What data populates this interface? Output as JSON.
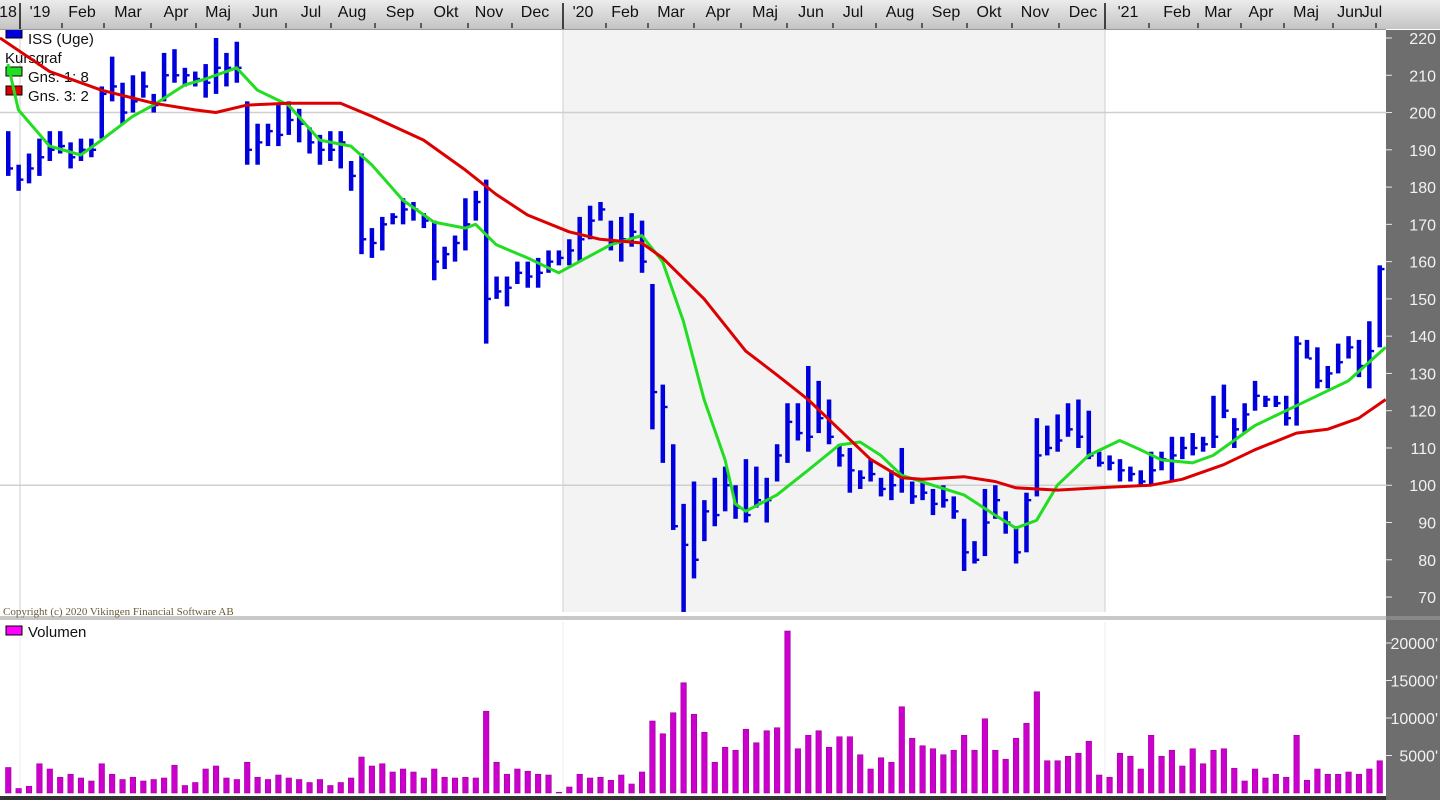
{
  "chart_data": [
    {
      "type": "ohlc",
      "title": "",
      "legend": [
        {
          "label": "ISS (Uge)",
          "color": "#0000dd"
        },
        {
          "label": "Kursgraf",
          "color": ""
        },
        {
          "label": "Gns. 1: 8",
          "color": "#22dd22"
        },
        {
          "label": "Gns. 3: 2",
          "color": "#dd0000"
        }
      ],
      "legend_placement": "top-left",
      "x_tick_labels": [
        "18",
        "'19",
        "Feb",
        "Mar",
        "Apr",
        "Maj",
        "Jun",
        "Jul",
        "Aug",
        "Sep",
        "Okt",
        "Nov",
        "Dec",
        "'20",
        "Feb",
        "Mar",
        "Apr",
        "Maj",
        "Jun",
        "Jul",
        "Aug",
        "Sep",
        "Okt",
        "Nov",
        "Dec",
        "'21",
        "Feb",
        "Mar",
        "Apr",
        "Maj",
        "Jun",
        "Jul"
      ],
      "y_ticks": [
        220,
        210,
        200,
        190,
        180,
        170,
        160,
        150,
        140,
        130,
        120,
        110,
        100,
        90,
        80,
        70
      ],
      "ylim": [
        66,
        221
      ],
      "grid_y": [
        200,
        100
      ],
      "shaded_period": "'20",
      "colors": {
        "bars": "#0000dd",
        "ma_short": "#22dd22",
        "ma_long": "#dd0000",
        "shade": "#f3f3f3",
        "axis_bg": "#6e6e6e"
      },
      "series": {
        "high": [
          195,
          186,
          189,
          193,
          195,
          195,
          192,
          193,
          193,
          207,
          215,
          208,
          210,
          211,
          205,
          216,
          217,
          212,
          211,
          213,
          220,
          216,
          219,
          203,
          197,
          197,
          202,
          203,
          201,
          196,
          194,
          195,
          195,
          187,
          189,
          169,
          172,
          173,
          177,
          176,
          173,
          171,
          164,
          167,
          177,
          179,
          182,
          156,
          156,
          160,
          160,
          161,
          163,
          163,
          166,
          172,
          175,
          176,
          171,
          172,
          173,
          171,
          154,
          127,
          111,
          95,
          101,
          96,
          102,
          105,
          100,
          107,
          105,
          102,
          111,
          122,
          122,
          132,
          128,
          123,
          111,
          110,
          104,
          107,
          102,
          104,
          110,
          101,
          101,
          99,
          100,
          97,
          91,
          85,
          99,
          100,
          93,
          89,
          98,
          118,
          116,
          119,
          122,
          123,
          120,
          109,
          108,
          107,
          105,
          104,
          109,
          109,
          113,
          113,
          114,
          113,
          124,
          127,
          118,
          122,
          128,
          124,
          124,
          124,
          140,
          139,
          137,
          132,
          138,
          140,
          139,
          144,
          159
        ],
        "low": [
          183,
          179,
          181,
          183,
          187,
          189,
          185,
          187,
          188,
          193,
          203,
          197,
          200,
          204,
          200,
          203,
          208,
          207,
          207,
          204,
          205,
          207,
          208,
          186,
          186,
          191,
          191,
          194,
          192,
          189,
          186,
          187,
          185,
          179,
          162,
          161,
          163,
          170,
          170,
          171,
          169,
          155,
          158,
          160,
          163,
          171,
          138,
          150,
          148,
          154,
          153,
          153,
          157,
          159,
          159,
          160,
          166,
          171,
          163,
          160,
          164,
          157,
          115,
          106,
          88,
          66,
          75,
          85,
          89,
          93,
          91,
          90,
          94,
          90,
          101,
          106,
          112,
          109,
          114,
          111,
          105,
          98,
          99,
          101,
          97,
          96,
          98,
          95,
          96,
          92,
          94,
          91,
          77,
          79,
          81,
          91,
          87,
          79,
          82,
          97,
          108,
          109,
          113,
          110,
          107,
          105,
          104,
          101,
          101,
          100,
          100,
          104,
          101,
          107,
          108,
          109,
          110,
          118,
          110,
          114,
          120,
          121,
          121,
          116,
          116,
          134,
          126,
          126,
          130,
          134,
          129,
          126,
          137
        ],
        "close": [
          185,
          182,
          185,
          188,
          190,
          191,
          188,
          190,
          190,
          205,
          207,
          200,
          203,
          207,
          202,
          210,
          210,
          210,
          209,
          208,
          212,
          212,
          212,
          190,
          192,
          195,
          194,
          198,
          197,
          192,
          190,
          190,
          192,
          183,
          166,
          165,
          170,
          172,
          174,
          174,
          171,
          160,
          162,
          165,
          170,
          176,
          150,
          152,
          153,
          157,
          156,
          157,
          160,
          161,
          163,
          166,
          171,
          174,
          165,
          166,
          168,
          160,
          125,
          121,
          89,
          84,
          80,
          93,
          92,
          100,
          94,
          92,
          96,
          96,
          108,
          117,
          114,
          113,
          118,
          113,
          108,
          104,
          102,
          103,
          99,
          100,
          102,
          97,
          98,
          95,
          96,
          93,
          82,
          80,
          90,
          96,
          90,
          82,
          96,
          108,
          110,
          112,
          115,
          113,
          108,
          106,
          106,
          104,
          103,
          101,
          104,
          107,
          108,
          110,
          110,
          111,
          113,
          120,
          115,
          119,
          124,
          123,
          122,
          118,
          138,
          134,
          128,
          130,
          133,
          137,
          132,
          136,
          158
        ]
      },
      "moving_averages": [
        {
          "name": "Gns. 1: 8",
          "points_week_value": [
            [
              0,
              213
            ],
            [
              1,
              200.7
            ],
            [
              4,
              191
            ],
            [
              7,
              188.6
            ],
            [
              9,
              192.6
            ],
            [
              12,
              199
            ],
            [
              14,
              202
            ],
            [
              17,
              207.4
            ],
            [
              19,
              209
            ],
            [
              22,
              212
            ],
            [
              24,
              206
            ],
            [
              27,
              202
            ],
            [
              30,
              192.6
            ],
            [
              33,
              191
            ],
            [
              35,
              186
            ],
            [
              38,
              176.5
            ],
            [
              41,
              170.6
            ],
            [
              44,
              169
            ],
            [
              45,
              170
            ],
            [
              47,
              164.5
            ],
            [
              50,
              161
            ],
            [
              53,
              157
            ],
            [
              55,
              160
            ],
            [
              58,
              164.5
            ],
            [
              61,
              167
            ],
            [
              63,
              160
            ],
            [
              65,
              144
            ],
            [
              67,
              123
            ],
            [
              69,
              107
            ],
            [
              70,
              95
            ],
            [
              71,
              93
            ],
            [
              74,
              97.4
            ],
            [
              77,
              104
            ],
            [
              80,
              110.8
            ],
            [
              82,
              111.6
            ],
            [
              84,
              108
            ],
            [
              86,
              102.7
            ],
            [
              89,
              100
            ],
            [
              92,
              97.4
            ],
            [
              95,
              92
            ],
            [
              97,
              88.5
            ],
            [
              99,
              90.6
            ],
            [
              101,
              100
            ],
            [
              104,
              108
            ],
            [
              107,
              112
            ],
            [
              109,
              109.5
            ],
            [
              111,
              106.8
            ],
            [
              114,
              106
            ],
            [
              116,
              108
            ],
            [
              118,
              112
            ],
            [
              120,
              116
            ],
            [
              123,
              120
            ],
            [
              126,
              124
            ],
            [
              129,
              128
            ],
            [
              132.6,
              137
            ]
          ]
        },
        {
          "name": "Gns. 3: 2",
          "points_week_value": [
            [
              -0.8,
              220
            ],
            [
              4,
              211
            ],
            [
              9,
              206
            ],
            [
              14,
              202.5
            ],
            [
              18,
              200.7
            ],
            [
              20,
              200
            ],
            [
              23,
              202
            ],
            [
              27,
              202.5
            ],
            [
              32,
              202.5
            ],
            [
              35,
              199
            ],
            [
              40,
              192.6
            ],
            [
              44,
              184.6
            ],
            [
              47,
              178
            ],
            [
              50,
              172.5
            ],
            [
              54,
              168
            ],
            [
              57,
              166
            ],
            [
              61,
              165
            ],
            [
              63,
              161
            ],
            [
              67,
              150
            ],
            [
              71,
              136
            ],
            [
              74,
              129.6
            ],
            [
              77,
              123
            ],
            [
              80,
              115
            ],
            [
              83,
              107
            ],
            [
              86,
              102
            ],
            [
              88,
              101.6
            ],
            [
              92,
              102.3
            ],
            [
              95,
              101
            ],
            [
              97,
              99.3
            ],
            [
              101,
              98.7
            ],
            [
              105,
              99.3
            ],
            [
              110,
              100
            ],
            [
              113,
              101.6
            ],
            [
              117,
              105.5
            ],
            [
              120,
              109.5
            ],
            [
              124,
              114
            ],
            [
              127,
              115
            ],
            [
              130,
              118
            ],
            [
              132.6,
              123
            ]
          ]
        }
      ]
    },
    {
      "type": "bar",
      "legend": [
        {
          "label": "Volumen",
          "color": "#cc00cc"
        }
      ],
      "y_tick_labels": [
        "20000'",
        "15000'",
        "10000'",
        "5000'"
      ],
      "y_ticks": [
        20000,
        15000,
        10000,
        5000
      ],
      "ylim": [
        0,
        22000
      ],
      "values": [
        3400,
        600,
        900,
        3900,
        3200,
        2100,
        2500,
        2000,
        1600,
        3900,
        2500,
        1800,
        2100,
        1600,
        1800,
        2000,
        3700,
        1000,
        1400,
        3200,
        3600,
        2000,
        1800,
        4100,
        2100,
        1800,
        2400,
        2000,
        1800,
        1400,
        1800,
        1000,
        1400,
        2000,
        4800,
        3600,
        3900,
        2800,
        3200,
        2800,
        2000,
        3200,
        2100,
        2000,
        2100,
        2000,
        10900,
        4100,
        2500,
        3200,
        2900,
        2500,
        2400,
        100,
        800,
        2500,
        2000,
        2100,
        1700,
        2400,
        1200,
        2800,
        9600,
        7900,
        10700,
        14700,
        10500,
        8100,
        4100,
        6100,
        5700,
        8500,
        6700,
        8300,
        8700,
        21600,
        5900,
        7700,
        8300,
        6100,
        7500,
        7500,
        5100,
        3200,
        4700,
        4100,
        11500,
        7300,
        6300,
        5900,
        5100,
        5700,
        7700,
        5700,
        9900,
        5700,
        4500,
        7300,
        9300,
        13500,
        4300,
        4300,
        4900,
        5300,
        6900,
        2400,
        2100,
        5300,
        4900,
        3200,
        7700,
        4900,
        5700,
        3600,
        5900,
        3900,
        5700,
        5900,
        3300,
        1600,
        3200,
        2000,
        2500,
        2100,
        7700,
        1700,
        3200,
        2500,
        2500,
        2800,
        2500,
        3200,
        4300
      ],
      "color": "#cc00cc"
    }
  ],
  "copyright": "Copyright (c) 2020 Vikingen Financial Software AB"
}
